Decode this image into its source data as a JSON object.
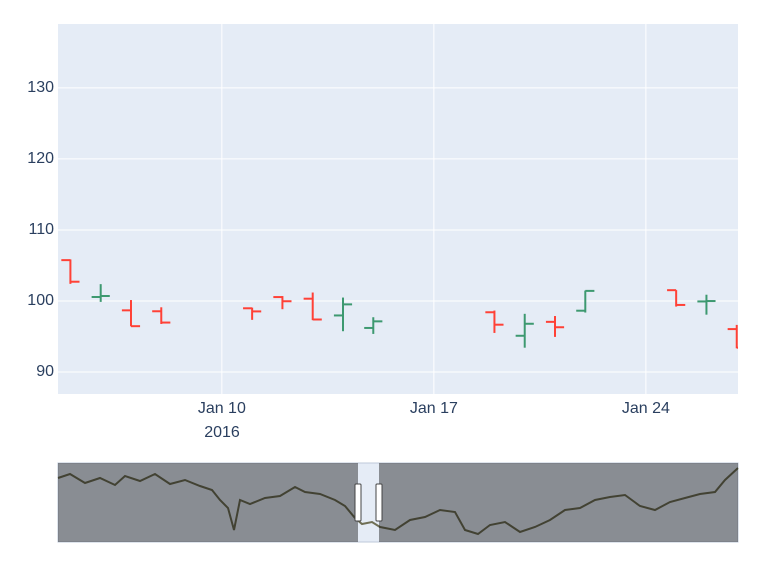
{
  "chart_data": {
    "type": "ohlc",
    "x": [
      "2016-01-05",
      "2016-01-06",
      "2016-01-07",
      "2016-01-08",
      "2016-01-11",
      "2016-01-12",
      "2016-01-13",
      "2016-01-14",
      "2016-01-15",
      "2016-01-19",
      "2016-01-20",
      "2016-01-21",
      "2016-01-22",
      "2016-01-25",
      "2016-01-26",
      "2016-01-27"
    ],
    "open": [
      105.75,
      100.56,
      98.68,
      98.55,
      98.97,
      100.55,
      100.32,
      97.96,
      96.2,
      98.41,
      95.1,
      97.06,
      98.63,
      101.52,
      99.93,
      96.04
    ],
    "high": [
      105.85,
      102.37,
      100.13,
      99.11,
      99.06,
      100.69,
      101.19,
      100.48,
      97.71,
      98.65,
      98.19,
      97.88,
      101.46,
      101.53,
      100.88,
      96.63
    ],
    "low": [
      102.41,
      99.87,
      96.43,
      96.76,
      97.34,
      98.84,
      97.3,
      95.74,
      95.36,
      95.5,
      93.42,
      94.94,
      98.37,
      99.21,
      98.07,
      93.34
    ],
    "close": [
      102.71,
      100.7,
      96.45,
      96.96,
      98.53,
      99.96,
      97.39,
      99.52,
      97.13,
      96.66,
      96.79,
      96.3,
      101.42,
      99.44,
      99.99,
      93.42
    ],
    "increasing_color": "#3D9970",
    "decreasing_color": "#FF4136",
    "xlim": [
      "2016-01-04T14:10:00Z",
      "2016-01-27T01:00:00Z"
    ],
    "xticks": [
      {
        "value": "2016-01-10",
        "label": "Jan 10"
      },
      {
        "value": "2016-01-17",
        "label": "Jan 17"
      },
      {
        "value": "2016-01-24",
        "label": "Jan 24"
      }
    ],
    "x_year_label": "2016",
    "ylim": [
      86.9,
      139
    ],
    "yticks": [
      90,
      100,
      110,
      120,
      130
    ],
    "grid": true,
    "rangeslider": true
  }
}
